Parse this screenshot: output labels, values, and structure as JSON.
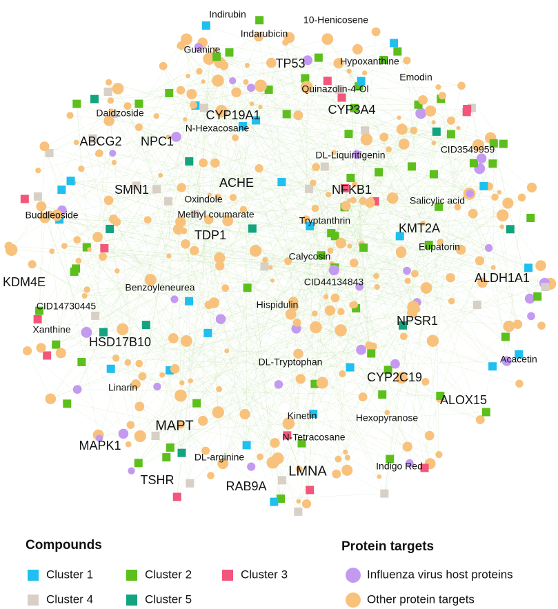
{
  "labels": [
    "Indirubin",
    "10-Henicosene",
    "Indarubicin",
    "Guanine",
    "Hypoxanthine",
    "TP53",
    "Emodin",
    "Quinazolin-4-Ol",
    "CYP3A4",
    "Daidzoside",
    "CYP19A1",
    "N-Hexacosane",
    "ABCG2",
    "NPC1",
    "CID3549959",
    "DL-Liquiritigenin",
    "SMN1",
    "ACHE",
    "NFKB1",
    "Oxindole",
    "Salicylic acid",
    "Methyl coumarate",
    "Buddleoside",
    "Tryptanthrin",
    "KMT2A",
    "TDP1",
    "Eupatorin",
    "Calycosin",
    "KDM4E",
    "ALDH1A1",
    "CID44134843",
    "Benzoyleneurea",
    "CID14730445",
    "Hispidulin",
    "NPSR1",
    "Xanthine",
    "HSD17B10",
    "DL-Tryptophan",
    "Acacetin",
    "CYP2C19",
    "Linarin",
    "ALOX15",
    "Hexopyranose",
    "MAPT",
    "Kinetin",
    "N-Tetracosane",
    "MAPK1",
    "DL-arginine",
    "LMNA",
    "Indigo Red",
    "TSHR",
    "RAB9A"
  ],
  "legend": {
    "compounds_title": "Compounds",
    "compounds": [
      "Cluster 1",
      "Cluster 2",
      "Cluster 3",
      "Cluster 4",
      "Cluster 5"
    ],
    "proteins_title": "Protein targets",
    "proteins": [
      "Influenza virus host proteins",
      "Other protein targets"
    ]
  }
}
